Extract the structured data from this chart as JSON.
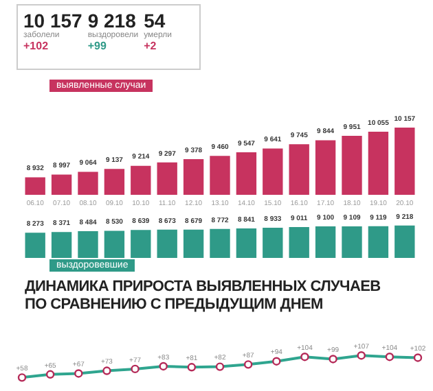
{
  "chart_data": [
    {
      "type": "other",
      "annotations": [
        "10 157",
        "заболели",
        "+102",
        "9 218",
        "выздоровели",
        "+99",
        "54",
        "умерли",
        "+2"
      ]
    },
    {
      "type": "bar",
      "title": "выявленные случаи",
      "categories": [
        "06.10",
        "07.10",
        "08.10",
        "09.10",
        "10.10",
        "11.10",
        "12.10",
        "13.10",
        "14.10",
        "15.10",
        "16.10",
        "17.10",
        "18.10",
        "19.10",
        "20.10"
      ],
      "values": [
        8932,
        8997,
        9064,
        9137,
        9214,
        9297,
        9378,
        9460,
        9547,
        9641,
        9745,
        9844,
        9951,
        10055,
        10157
      ],
      "color": "#c7335f",
      "data_labels": true,
      "tick_labels": "x",
      "grid": false,
      "legend": false
    },
    {
      "type": "bar",
      "title": "выздоровевшие",
      "categories": [
        "06.10",
        "07.10",
        "08.10",
        "09.10",
        "10.10",
        "11.10",
        "12.10",
        "13.10",
        "14.10",
        "15.10",
        "16.10",
        "17.10",
        "18.10",
        "19.10",
        "20.10"
      ],
      "values": [
        8273,
        8371,
        8484,
        8530,
        8639,
        8673,
        8679,
        8772,
        8841,
        8933,
        9011,
        9100,
        9109,
        9119,
        9218
      ],
      "color": "#2f9a88",
      "data_labels": true,
      "tick_labels": false,
      "grid": false,
      "legend": false
    },
    {
      "type": "line",
      "title": "ДИНАМИКА ПРИРОСТА ВЫЯВЛЕННЫХ СЛУЧАЕВ ПО СРАВНЕНИЮ С ПРЕДЫДУЩИМ ДНЕМ",
      "categories": [
        null,
        null,
        null,
        null,
        null,
        null,
        null,
        null,
        null,
        null,
        null,
        null,
        null,
        null,
        null
      ],
      "series": [
        {
          "color": "#2fa58f",
          "values": [
            58,
            65,
            67,
            73,
            77,
            83,
            81,
            82,
            87,
            94,
            104,
            99,
            107,
            104,
            102
          ],
          "value_labels": [
            "+58",
            "+65",
            "+67",
            "+73",
            "+77",
            "+83",
            "+81",
            "+82",
            "+87",
            "+94",
            "+104",
            "+99",
            "+107",
            "+104",
            "+102"
          ]
        }
      ],
      "marker": "circle",
      "tick_labels": false,
      "grid": false,
      "legend": false
    }
  ]
}
